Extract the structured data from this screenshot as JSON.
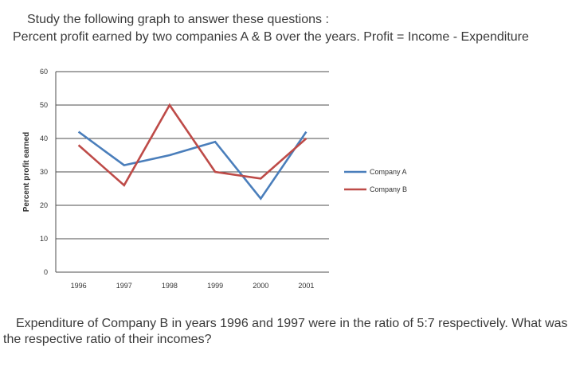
{
  "intro": {
    "line1": "Study the following graph to answer these questions :",
    "line2": "Percent profit earned by two companies A & B over the years. Profit = Income - Expenditure"
  },
  "question": {
    "line1": "Expenditure of Company B in years 1996 and 1997 were in the ratio of 5:7 respectively. What was",
    "line2": "the respective ratio of their incomes?"
  },
  "chart_data": {
    "type": "line",
    "title": "",
    "xlabel": "",
    "ylabel": "Percent profit earned",
    "x": [
      "1996",
      "1997",
      "1998",
      "1999",
      "2000",
      "2001"
    ],
    "ylim": [
      0,
      60
    ],
    "yticks": [
      0,
      10,
      20,
      30,
      40,
      50,
      60
    ],
    "grid": true,
    "legend_position": "right",
    "series": [
      {
        "name": "Company A",
        "color": "#4a7ebb",
        "values": [
          42,
          32,
          35,
          39,
          22,
          42
        ]
      },
      {
        "name": "Company B",
        "color": "#be4b48",
        "values": [
          38,
          26,
          50,
          30,
          28,
          40
        ]
      }
    ]
  }
}
